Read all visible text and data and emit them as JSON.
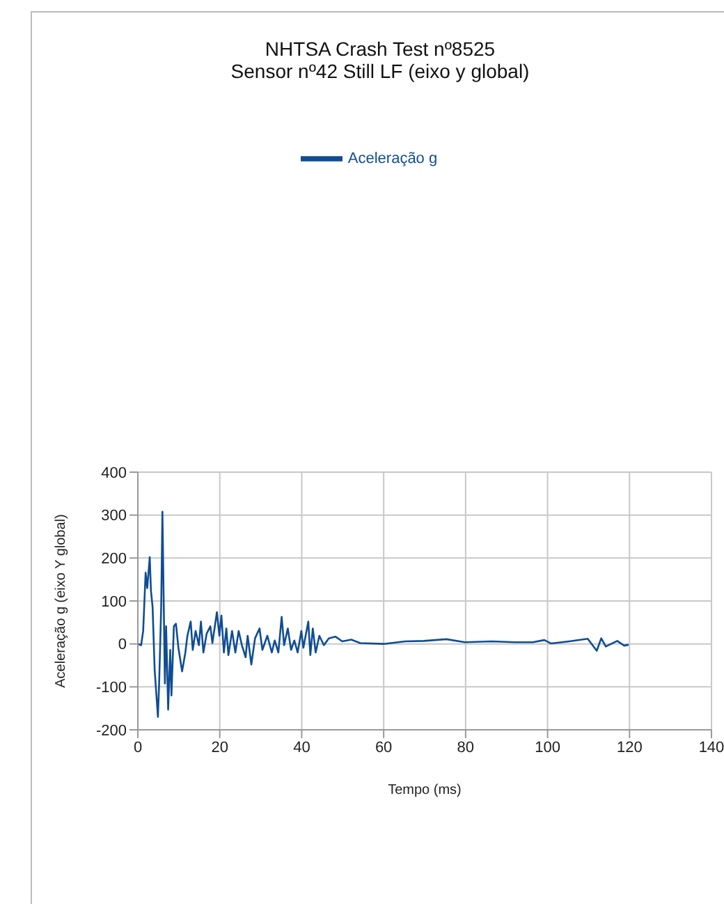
{
  "chart_data": {
    "type": "line",
    "title": "NHTSA Crash Test nº8525\nSensor nº42 Still LF (eixo y global)",
    "xlabel": "Tempo (ms)",
    "ylabel": "Aceleração g (eixo Y global)",
    "xlim": [
      0,
      140
    ],
    "xticks": [
      0,
      20,
      40,
      60,
      80,
      100,
      120,
      140
    ],
    "ylim": [
      -200,
      400
    ],
    "yticks": [
      -200,
      -100,
      0,
      100,
      200,
      300,
      400
    ],
    "grid": true,
    "legend": "top",
    "marker": "none",
    "line_style": "solid",
    "series": [
      {
        "name": "Aceleração g",
        "color": "#0f4d92",
        "x": [
          0,
          0.8,
          1.3,
          1.9,
          2.3,
          2.9,
          3.2,
          3.6,
          4.1,
          4.9,
          5.2,
          5.7,
          6.0,
          6.6,
          6.9,
          7.4,
          7.9,
          8.2,
          8.8,
          9.3,
          9.9,
          10.8,
          11.6,
          12.1,
          12.9,
          13.4,
          14.1,
          14.9,
          15.4,
          16,
          16.8,
          17.7,
          18.2,
          19.3,
          19.9,
          20.4,
          21,
          21.6,
          22.1,
          23,
          23.8,
          24.6,
          25.4,
          26.3,
          26.8,
          27.7,
          28.6,
          29.7,
          30.4,
          31.6,
          32.7,
          33.4,
          34.3,
          35.1,
          35.7,
          36.6,
          37.4,
          38.2,
          39,
          39.9,
          40.4,
          41.6,
          42.1,
          42.7,
          43.4,
          44.3,
          45.4,
          46.6,
          48.2,
          49.9,
          52.1,
          54.3,
          60,
          65.3,
          69.8,
          75.3,
          79.8,
          86.4,
          92,
          96.4,
          99.2,
          100.9,
          105.3,
          109.8,
          112,
          113.1,
          114.2,
          117,
          118.7,
          119.8
        ],
        "values": [
          0,
          -3,
          30,
          166,
          130,
          202,
          124,
          86,
          -59,
          -170,
          -92,
          86,
          308,
          -92,
          41,
          -153,
          -14,
          -120,
          41,
          47,
          -9,
          -64,
          -20,
          19,
          52,
          -14,
          30,
          -3,
          52,
          -20,
          24,
          41,
          2,
          74,
          19,
          66,
          -20,
          36,
          -26,
          30,
          -20,
          30,
          -3,
          -31,
          19,
          -48,
          13,
          36,
          -14,
          19,
          -20,
          8,
          -20,
          63,
          -3,
          36,
          -14,
          8,
          -20,
          30,
          -9,
          52,
          -26,
          36,
          -20,
          19,
          -3,
          13,
          17,
          6,
          10,
          2,
          0,
          6,
          7,
          11,
          4,
          6,
          4,
          4,
          9,
          1,
          6,
          12,
          -16,
          13,
          -6,
          7,
          -4,
          -2
        ]
      }
    ]
  }
}
